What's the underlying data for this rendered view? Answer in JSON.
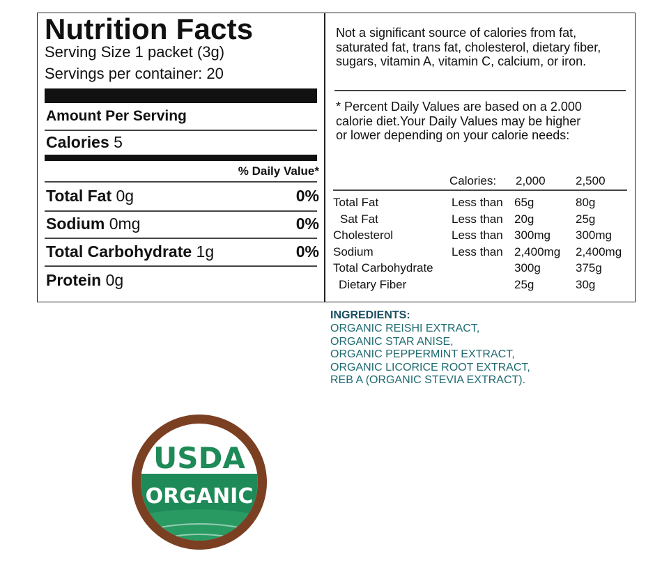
{
  "nutrition": {
    "title": "Nutrition Facts",
    "serving_size": "Serving Size 1 packet (3g)",
    "servings": "Servings per container: 20",
    "amount_per_serving": "Amount Per Serving",
    "calories": {
      "label": "Calories",
      "value": "5"
    },
    "daily_value_header": "% Daily Value*",
    "rows": [
      {
        "label": "Total Fat",
        "amount": "0g",
        "dv": "0%"
      },
      {
        "label": "Sodium",
        "amount": "0mg",
        "dv": "0%"
      },
      {
        "label": "Total Carbohydrate",
        "amount": "1g",
        "dv": "0%"
      },
      {
        "label": "Protein",
        "amount": "0g"
      }
    ]
  },
  "notes": {
    "not_significant": "Not a significant source of calories from fat, saturated fat, trans fat, cholesterol, dietary fiber, sugars, vitamin A, vitamin C, calcium, or iron.",
    "footnote": "* Percent Daily Values are based on a 2.000 calorie diet.Your Daily Values may be higher or lower depending on your calorie needs:"
  },
  "dv_table": {
    "header": [
      "Calories:",
      "2,000",
      "2,500"
    ],
    "rows": [
      [
        "Total Fat",
        "Less than",
        "65g",
        "80g"
      ],
      [
        "Sat Fat",
        "Less than",
        "20g",
        "25g"
      ],
      [
        "Cholesterol",
        "Less than",
        "300mg",
        "300mg"
      ],
      [
        "Sodium",
        "Less than",
        "2,400mg",
        "2,400mg"
      ],
      [
        "Total Carbohydrate",
        "",
        "300g",
        "375g"
      ],
      [
        "Dietary Fiber",
        "",
        "25g",
        "30g"
      ]
    ]
  },
  "ingredients": {
    "title": "INGREDIENTS:",
    "lines": [
      "ORGANIC REISHI EXTRACT,",
      "ORGANIC STAR ANISE,",
      "ORGANIC PEPPERMINT EXTRACT,",
      "ORGANIC LICORICE ROOT EXTRACT,",
      "REB A (ORGANIC STEVIA EXTRACT)."
    ]
  },
  "seal": {
    "top": "USDA",
    "bottom": "ORGANIC"
  }
}
